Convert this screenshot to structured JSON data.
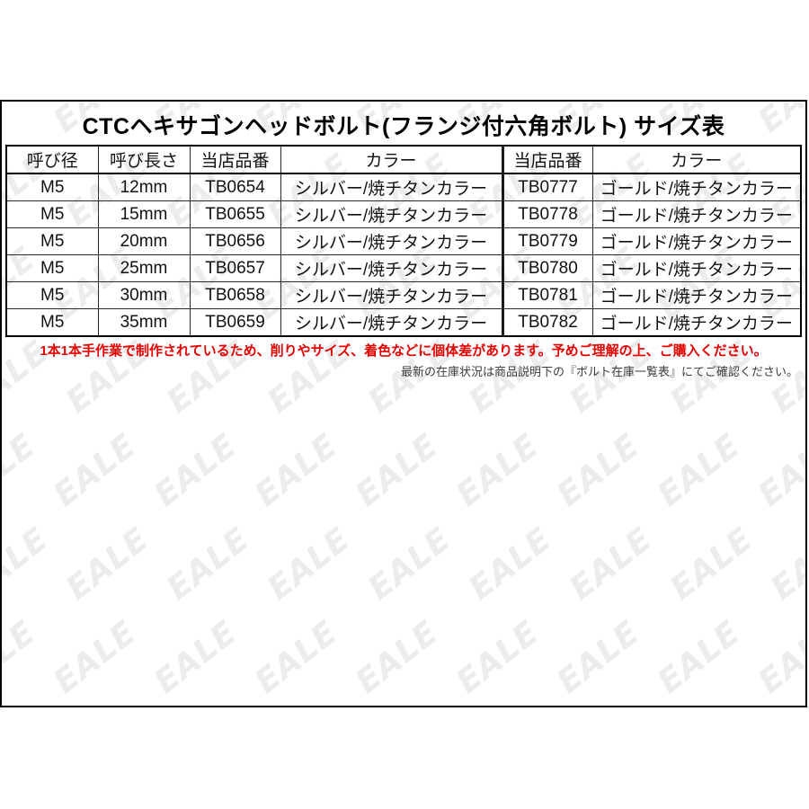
{
  "page": {
    "title": "CTCヘキサゴンヘッドボルト(フランジ付六角ボルト) サイズ表"
  },
  "table": {
    "headers": [
      "呼び径",
      "呼び長さ",
      "当店品番",
      "カラー",
      "当店品番",
      "カラー"
    ],
    "rows": [
      [
        "M5",
        "12mm",
        "TB0654",
        "シルバー/焼チタンカラー",
        "TB0777",
        "ゴールド/焼チタンカラー"
      ],
      [
        "M5",
        "15mm",
        "TB0655",
        "シルバー/焼チタンカラー",
        "TB0778",
        "ゴールド/焼チタンカラー"
      ],
      [
        "M5",
        "20mm",
        "TB0656",
        "シルバー/焼チタンカラー",
        "TB0779",
        "ゴールド/焼チタンカラー"
      ],
      [
        "M5",
        "25mm",
        "TB0657",
        "シルバー/焼チタンカラー",
        "TB0780",
        "ゴールド/焼チタンカラー"
      ],
      [
        "M5",
        "30mm",
        "TB0658",
        "シルバー/焼チタンカラー",
        "TB0781",
        "ゴールド/焼チタンカラー"
      ],
      [
        "M5",
        "35mm",
        "TB0659",
        "シルバー/焼チタンカラー",
        "TB0782",
        "ゴールド/焼チタンカラー"
      ]
    ]
  },
  "notes": {
    "handmade_warning": "1本1本手作業で制作されているため、削りやサイズ、着色などに個体差があります。予めご理解の上、ご購入ください。",
    "stock_note": "最新の在庫状況は商品説明下の『ボルト在庫一覧表』にてご確認ください。"
  },
  "watermark": {
    "text": "EALE",
    "color": "#ececec"
  },
  "colors": {
    "warning_red": "#e60000",
    "border_black": "#000000",
    "note_gray": "#3c3c3c",
    "background": "#ffffff"
  }
}
